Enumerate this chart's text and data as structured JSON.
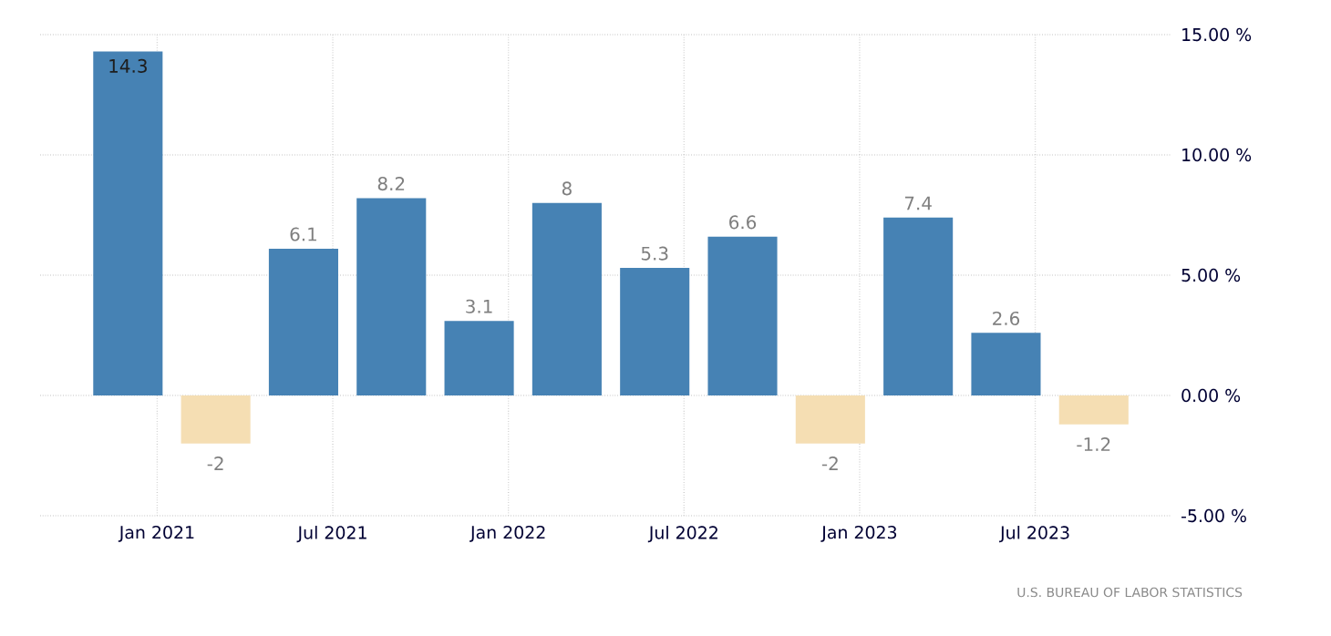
{
  "chart_data": {
    "type": "bar",
    "x": [
      "2020-12",
      "2021-03",
      "2021-06",
      "2021-09",
      "2021-12",
      "2022-03",
      "2022-06",
      "2022-09",
      "2022-12",
      "2023-03",
      "2023-06",
      "2023-09"
    ],
    "values": [
      14.3,
      -2,
      6.1,
      8.2,
      3.1,
      8,
      5.3,
      6.6,
      -2,
      7.4,
      2.6,
      -1.2
    ],
    "colors": [
      "#4682b4",
      "#f5deb3",
      "#4682b4",
      "#4682b4",
      "#4682b4",
      "#4682b4",
      "#4682b4",
      "#4682b4",
      "#f5deb3",
      "#4682b4",
      "#4682b4",
      "#f5deb3"
    ],
    "data_labels": true,
    "xlim": [
      "2020-09",
      "2023-11-20"
    ],
    "xticks": [
      {
        "value": "2021-01",
        "label": "Jan 2021"
      },
      {
        "value": "2021-07",
        "label": "Jul 2021"
      },
      {
        "value": "2022-01",
        "label": "Jan 2022"
      },
      {
        "value": "2022-07",
        "label": "Jul 2022"
      },
      {
        "value": "2023-01",
        "label": "Jan 2023"
      },
      {
        "value": "2023-07",
        "label": "Jul 2023"
      }
    ],
    "ylim": [
      -5,
      15
    ],
    "yticks": [
      {
        "value": -5,
        "label": "-5.00 %"
      },
      {
        "value": 0,
        "label": "0.00 %"
      },
      {
        "value": 5,
        "label": "5.00 %"
      },
      {
        "value": 10,
        "label": "10.00 %"
      },
      {
        "value": 15,
        "label": "15.00 %"
      }
    ],
    "grid": true,
    "annotations": [
      "U.S. BUREAU OF LABOR STATISTICS"
    ]
  }
}
